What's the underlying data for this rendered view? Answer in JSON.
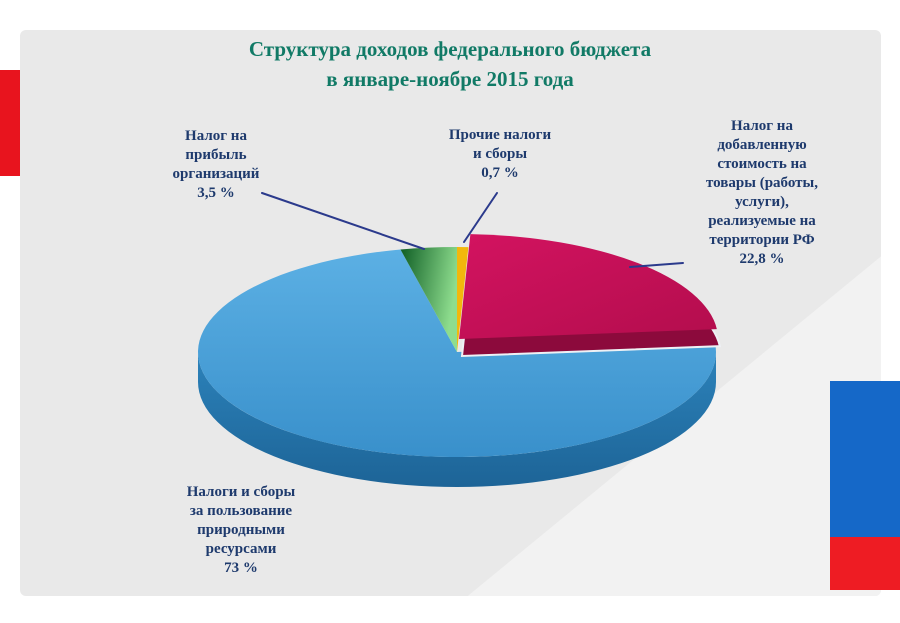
{
  "page": {
    "title_line1": "Структура доходов федерального бюджета",
    "title_line2": "в январе-ноябре 2015 года"
  },
  "chart_data": {
    "type": "pie",
    "style": "3d",
    "title": "Структура доходов федерального бюджета в январе-ноябре 2015 года",
    "unit": "percent",
    "start_angle_deg": 0,
    "direction": "clockwise",
    "raised_slice": "vat",
    "slices": [
      {
        "key": "other",
        "label": "Прочие налоги и сборы",
        "value": 0.7,
        "display": "0,7 %",
        "color": "#f2b70d"
      },
      {
        "key": "vat",
        "label": "Налог на добавленную стоимость на товары (работы, услуги), реализуемые на территории РФ",
        "value": 22.8,
        "display": "22,8 %",
        "color": "#c81356"
      },
      {
        "key": "resources",
        "label": "Налоги и сборы за пользование природными ресурсами",
        "value": 73,
        "display": "73 %",
        "color": "#3f9cd9"
      },
      {
        "key": "profit",
        "label": "Налог на прибыль организаций",
        "value": 3.5,
        "display": "3,5 %",
        "color": "#46a24a"
      }
    ]
  },
  "annotations": {
    "profit": "Налог на\nприбыль\nорганизаций\n3,5 %",
    "other": "Прочие налоги\nи сборы\n0,7 %",
    "vat": "Налог на\nдобавленную\nстоимость на\nтовары (работы,\nуслуги),\nреализуемые на\nтерритории РФ\n22,8 %",
    "resources": "Налоги и сборы\nза пользование\nприродными\nресурсами\n73 %"
  },
  "accents": {
    "left_bar_red": "#e8141e",
    "right_bar_blue": "#1568c8",
    "right_bar_red": "#ee1c23",
    "title_color": "#117a66",
    "label_color": "#1e3a6d",
    "leader_line_color": "#2b3a8c"
  }
}
